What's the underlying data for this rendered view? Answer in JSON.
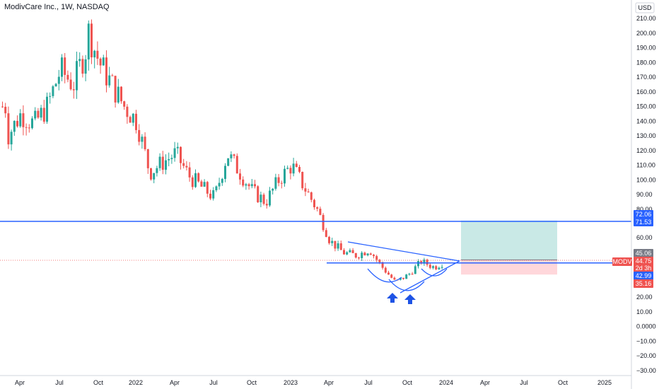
{
  "header": {
    "title": "ModivCare Inc., 1W, NASDAQ"
  },
  "axis": {
    "currency": "USD"
  },
  "colors": {
    "up": "#26a69a",
    "down": "#ef5350",
    "line": "#2962ff",
    "profit_zone": "#b2dfdb",
    "loss_zone": "#ffcdd2"
  },
  "chart_data": {
    "type": "candlestick",
    "title": "ModivCare Inc., 1W, NASDAQ",
    "y_ticks": [
      210,
      200,
      190,
      180,
      170,
      160,
      150,
      140,
      130,
      120,
      110,
      100,
      90,
      80,
      60,
      20,
      10,
      0,
      -10,
      -20,
      -30
    ],
    "y_tick_labels": [
      "210.00",
      "200.00",
      "190.00",
      "180.00",
      "170.00",
      "160.00",
      "150.00",
      "140.00",
      "130.00",
      "120.00",
      "110.00",
      "100.00",
      "90.00",
      "80.00",
      "60.00",
      "20.00",
      "10.00",
      "0.0000",
      "−10.00",
      "−20.00",
      "−30.00"
    ],
    "x_ticks": [
      "Apr",
      "Jul",
      "Oct",
      "2022",
      "Apr",
      "Jul",
      "Oct",
      "2023",
      "Apr",
      "Jul",
      "Oct",
      "2024",
      "Apr",
      "Jul",
      "Oct",
      "2025"
    ],
    "x_ticks_dates": [
      "2021-04",
      "2021-07",
      "2021-10",
      "2022-01",
      "2022-04",
      "2022-07",
      "2022-10",
      "2023-01",
      "2023-04",
      "2023-07",
      "2023-10",
      "2024-01",
      "2024-04",
      "2024-07",
      "2024-10",
      "2025-01"
    ],
    "close_path": [
      [
        "2021-03",
        150
      ],
      [
        "2021-03",
        130
      ],
      [
        "2021-04",
        145
      ],
      [
        "2021-05",
        138
      ],
      [
        "2021-06",
        150
      ],
      [
        "2021-07",
        175
      ],
      [
        "2021-08",
        165
      ],
      [
        "2021-09",
        190
      ],
      [
        "2021-09",
        205
      ],
      [
        "2021-10",
        180
      ],
      [
        "2021-11",
        165
      ],
      [
        "2021-12",
        150
      ],
      [
        "2022-01",
        140
      ],
      [
        "2022-02",
        105
      ],
      [
        "2022-03",
        112
      ],
      [
        "2022-04",
        118
      ],
      [
        "2022-05",
        103
      ],
      [
        "2022-06",
        95
      ],
      [
        "2022-07",
        88
      ],
      [
        "2022-08",
        118
      ],
      [
        "2022-09",
        105
      ],
      [
        "2022-10",
        92
      ],
      [
        "2022-11",
        85
      ],
      [
        "2022-12",
        100
      ],
      [
        "2023-01",
        110
      ],
      [
        "2023-02",
        95
      ],
      [
        "2023-03",
        80
      ],
      [
        "2023-04",
        58
      ],
      [
        "2023-05",
        50
      ],
      [
        "2023-06",
        48
      ],
      [
        "2023-07",
        52
      ],
      [
        "2023-08",
        40
      ],
      [
        "2023-09",
        30
      ],
      [
        "2023-10",
        35
      ],
      [
        "2023-11",
        44
      ],
      [
        "2023-12",
        40
      ],
      [
        "2024-01",
        44.75
      ]
    ],
    "price_levels": [
      {
        "label": "72.06",
        "value": 72.06,
        "color": "#2962ff"
      },
      {
        "label": "71.53",
        "value": 71.53,
        "color": "#2962ff"
      },
      {
        "label": "45.06",
        "value": 45.06,
        "color": "#787b86"
      },
      {
        "label": "MODV",
        "value": 44.75,
        "color": "#ef5350"
      },
      {
        "label": "44.75",
        "value": 44.75,
        "color": "#ef5350"
      },
      {
        "label": "2d 3h",
        "value": 44.75,
        "color": "#ef5350"
      },
      {
        "label": "42.99",
        "value": 42.99,
        "color": "#2962ff"
      },
      {
        "label": "35.16",
        "value": 35.16,
        "color": "#ef5350"
      }
    ],
    "long_position": {
      "entry": 45.06,
      "target": 72.06,
      "stop": 35.16
    },
    "trendlines": {
      "horizontal_support": 71.53,
      "neckline": 42.99
    },
    "annotations": [
      "inverse head and shoulders",
      "two upward arrows"
    ]
  }
}
